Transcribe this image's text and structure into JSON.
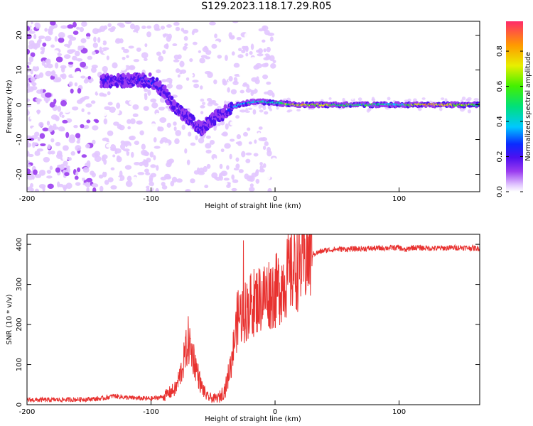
{
  "title": "S129.2023.118.17.29.R05",
  "colors": {
    "snr_line": "#e8312f",
    "axes": "#000000",
    "background": "#ffffff"
  },
  "chart_data": [
    {
      "type": "heatmap",
      "xlabel": "Height of straight line (km)",
      "ylabel": "Frequency (Hz)",
      "xlim": [
        -200,
        165
      ],
      "ylim": [
        -25,
        24
      ],
      "xticks": [
        -200,
        -100,
        0,
        100
      ],
      "yticks": [
        -20,
        -10,
        0,
        10,
        20
      ],
      "colorbar": {
        "label": "Normalized spectral amplitude",
        "range": [
          0,
          0.97
        ],
        "ticks": [
          0.0,
          0.2,
          0.4,
          0.6,
          0.8
        ],
        "colormap": [
          "#ffffff",
          "#e2c7ff",
          "#9a3cf0",
          "#4d10f0",
          "#0a2bff",
          "#00c8ff",
          "#00e07a",
          "#44f000",
          "#e8ef00",
          "#ff9a00",
          "#ff2a6a"
        ]
      },
      "trace": [
        {
          "x": -135,
          "y": 7,
          "amp": 0.35
        },
        {
          "x": -120,
          "y": 7,
          "amp": 0.3
        },
        {
          "x": -100,
          "y": 7,
          "amp": 0.4
        },
        {
          "x": -90,
          "y": 4,
          "amp": 0.35
        },
        {
          "x": -80,
          "y": -1,
          "amp": 0.3
        },
        {
          "x": -70,
          "y": -4,
          "amp": 0.3
        },
        {
          "x": -60,
          "y": -7,
          "amp": 0.3
        },
        {
          "x": -50,
          "y": -4,
          "amp": 0.3
        },
        {
          "x": -40,
          "y": -2,
          "amp": 0.3
        },
        {
          "x": -30,
          "y": 0,
          "amp": 0.5
        },
        {
          "x": -15,
          "y": 1,
          "amp": 0.6
        },
        {
          "x": 0,
          "y": 0.5,
          "amp": 0.6
        },
        {
          "x": 20,
          "y": 0,
          "amp": 0.9
        },
        {
          "x": 60,
          "y": 0,
          "amp": 0.7
        },
        {
          "x": 100,
          "y": 0,
          "amp": 0.6
        },
        {
          "x": 120,
          "y": 0,
          "amp": 0.95
        },
        {
          "x": 165,
          "y": 0,
          "amp": 0.7
        }
      ]
    },
    {
      "type": "line",
      "xlabel": "Height of straight line (km)",
      "ylabel": "SNR (10 * v/v)",
      "xlim": [
        -200,
        165
      ],
      "ylim": [
        0,
        425
      ],
      "xticks": [
        -200,
        -100,
        0,
        100
      ],
      "yticks": [
        0,
        100,
        200,
        300,
        400
      ],
      "series": [
        {
          "x": [
            -200,
            -180,
            -160,
            -140,
            -130,
            -120,
            -110,
            -100,
            -90,
            -80,
            -75,
            -70,
            -65,
            -60,
            -55,
            -50,
            -45,
            -40,
            -35,
            -30,
            -25,
            -20,
            -15,
            -10,
            -5,
            0,
            5,
            10,
            15,
            20,
            25,
            30,
            40,
            50,
            60,
            80,
            100,
            105,
            110,
            130,
            150,
            165
          ],
          "y": [
            12,
            12,
            13,
            15,
            22,
            18,
            16,
            15,
            20,
            40,
            90,
            160,
            110,
            50,
            20,
            15,
            18,
            40,
            110,
            220,
            230,
            250,
            260,
            270,
            280,
            280,
            300,
            320,
            335,
            350,
            365,
            375,
            385,
            388,
            388,
            390,
            392,
            385,
            392,
            390,
            392,
            390
          ]
        }
      ]
    }
  ]
}
